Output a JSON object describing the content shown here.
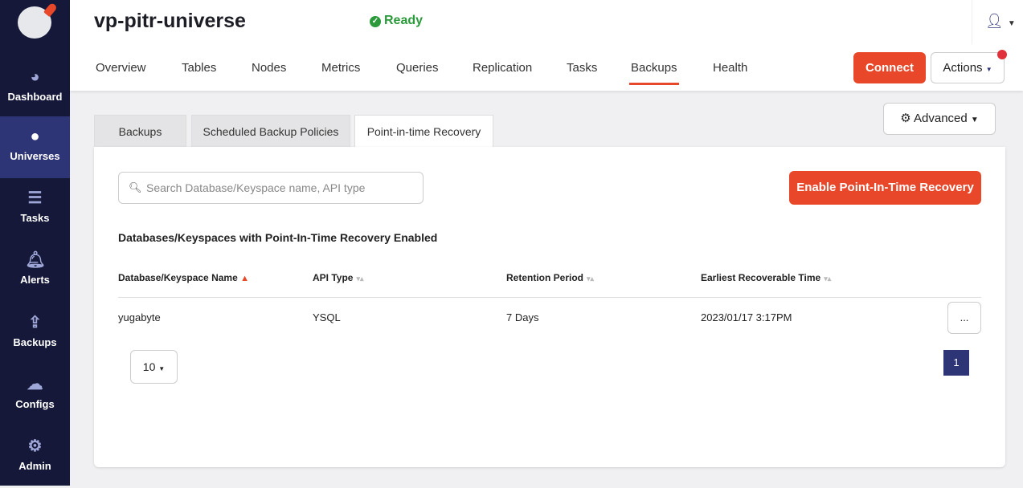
{
  "sidebar": {
    "items": [
      {
        "label": "Dashboard",
        "icon": "dashboard-icon"
      },
      {
        "label": "Universes",
        "icon": "globe-icon",
        "active": true
      },
      {
        "label": "Tasks",
        "icon": "list-icon"
      },
      {
        "label": "Alerts",
        "icon": "bell-icon"
      },
      {
        "label": "Backups",
        "icon": "upload-icon"
      },
      {
        "label": "Configs",
        "icon": "cloud-upload-icon"
      },
      {
        "label": "Admin",
        "icon": "gear-icon"
      }
    ]
  },
  "header": {
    "title": "vp-pitr-universe",
    "status": "Ready",
    "tabs": [
      "Overview",
      "Tables",
      "Nodes",
      "Metrics",
      "Queries",
      "Replication",
      "Tasks",
      "Backups",
      "Health"
    ],
    "active_tab": "Backups",
    "connect": "Connect",
    "actions": "Actions"
  },
  "subtabs": [
    "Backups",
    "Scheduled Backup Policies",
    "Point-in-time Recovery"
  ],
  "advanced": "Advanced",
  "search": {
    "placeholder": "Search Database/Keyspace name, API type"
  },
  "enable_button": "Enable Point-In-Time Recovery",
  "section_title": "Databases/Keyspaces with Point-In-Time Recovery Enabled",
  "table": {
    "columns": [
      "Database/Keyspace Name",
      "API Type",
      "Retention Period",
      "Earliest Recoverable Time"
    ],
    "rows": [
      [
        "yugabyte",
        "YSQL",
        "7 Days",
        "2023/01/17 3:17PM"
      ]
    ],
    "row_action": "..."
  },
  "pagination": {
    "page_size": "10",
    "current_page": "1"
  },
  "colors": {
    "accent": "#e8472a",
    "sidebar": "#151838",
    "active": "#2e3577",
    "ready": "#2b9a3a"
  }
}
